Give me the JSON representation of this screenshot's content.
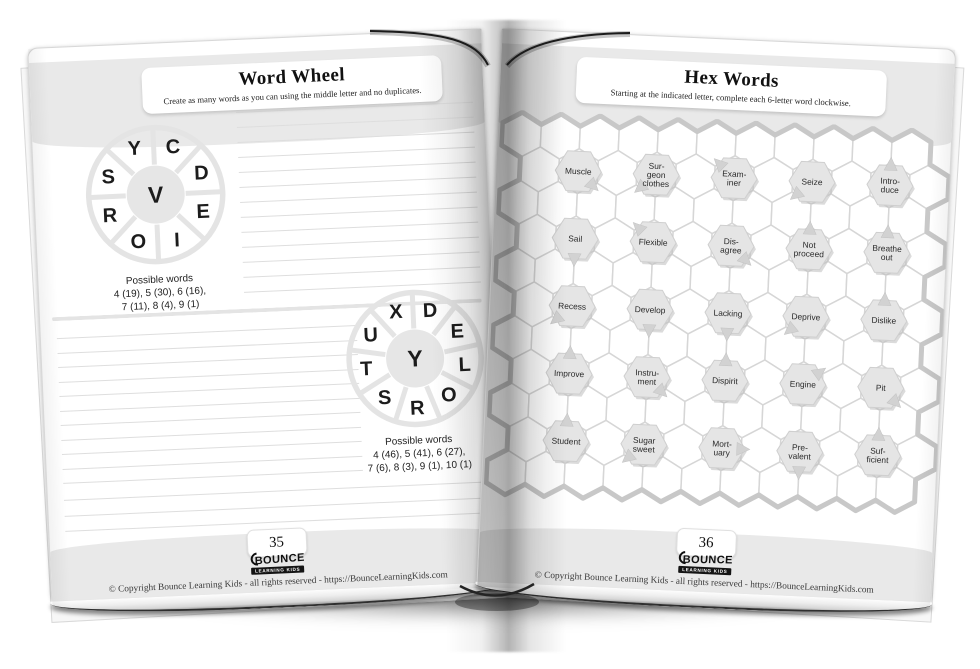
{
  "book": {
    "left_page": {
      "page_number": "35",
      "header": {
        "title": "Word Wheel",
        "subtitle": "Create as many words as you can using the middle letter and no duplicates."
      },
      "wheel1": {
        "center_letter": "V",
        "ring_letters": [
          "Y",
          "C",
          "D",
          "E",
          "I",
          "O",
          "R",
          "S"
        ],
        "possible_words_label": "Possible words",
        "possible_words_line1": "4 (19), 5 (30), 6 (16),",
        "possible_words_line2": "7 (11), 8 (4), 9 (1)"
      },
      "wheel2": {
        "center_letter": "Y",
        "ring_letters": [
          "X",
          "D",
          "E",
          "L",
          "O",
          "R",
          "S",
          "T",
          "U"
        ],
        "possible_words_label": "Possible words",
        "possible_words_line1": "4 (46), 5 (41), 6 (27),",
        "possible_words_line2": "7 (6), 8 (3), 9 (1), 10 (1)"
      },
      "footer": {
        "logo_main": "BOUNCE",
        "logo_sub": "LEARNING KIDS",
        "copyright": "© Copyright Bounce Learning Kids - all rights reserved - https://BounceLearningKids.com"
      }
    },
    "right_page": {
      "page_number": "36",
      "header": {
        "title": "Hex Words",
        "subtitle": "Starting at the indicated letter, complete each 6-letter word clockwise."
      },
      "hex_grid": {
        "rows": 11,
        "cols": 11,
        "clues": [
          {
            "text": "Muscle",
            "row": 1,
            "col": 1,
            "pointer": "SE"
          },
          {
            "text": "Sur-\ngeon\nclothes",
            "row": 1,
            "col": 3,
            "pointer": "SW"
          },
          {
            "text": "Exam-\niner",
            "row": 1,
            "col": 5,
            "pointer": "NW"
          },
          {
            "text": "Seize",
            "row": 1,
            "col": 7,
            "pointer": "SW"
          },
          {
            "text": "Intro-\nduce",
            "row": 1,
            "col": 9,
            "pointer": "N"
          },
          {
            "text": "Sail",
            "row": 3,
            "col": 1,
            "pointer": "S"
          },
          {
            "text": "Flexible",
            "row": 3,
            "col": 3,
            "pointer": "NW"
          },
          {
            "text": "Dis-\nagree",
            "row": 3,
            "col": 5,
            "pointer": "SE"
          },
          {
            "text": "Not\nproceed",
            "row": 3,
            "col": 7,
            "pointer": "N"
          },
          {
            "text": "Breathe\nout",
            "row": 3,
            "col": 9,
            "pointer": "N"
          },
          {
            "text": "Recess",
            "row": 5,
            "col": 1,
            "pointer": "SW"
          },
          {
            "text": "Develop",
            "row": 5,
            "col": 3,
            "pointer": "S"
          },
          {
            "text": "Lacking",
            "row": 5,
            "col": 5,
            "pointer": "S"
          },
          {
            "text": "Deprive",
            "row": 5,
            "col": 7,
            "pointer": "SW"
          },
          {
            "text": "Dislike",
            "row": 5,
            "col": 9,
            "pointer": "N"
          },
          {
            "text": "Improve",
            "row": 7,
            "col": 1,
            "pointer": "N"
          },
          {
            "text": "Instru-\nment",
            "row": 7,
            "col": 3,
            "pointer": "SE"
          },
          {
            "text": "Dispirit",
            "row": 7,
            "col": 5,
            "pointer": "N"
          },
          {
            "text": "Engine",
            "row": 7,
            "col": 7,
            "pointer": "NE"
          },
          {
            "text": "Pit",
            "row": 7,
            "col": 9,
            "pointer": "SE"
          },
          {
            "text": "Student",
            "row": 9,
            "col": 1,
            "pointer": "N"
          },
          {
            "text": "Sugar\nsweet",
            "row": 9,
            "col": 3,
            "pointer": "SW"
          },
          {
            "text": "Mort-\nuary",
            "row": 9,
            "col": 5,
            "pointer": "E"
          },
          {
            "text": "Pre-\nvalent",
            "row": 9,
            "col": 7,
            "pointer": "S"
          },
          {
            "text": "Suf-\nficient",
            "row": 9,
            "col": 9,
            "pointer": "N"
          }
        ]
      },
      "footer": {
        "logo_main": "BOUNCE",
        "logo_sub": "LEARNING KIDS",
        "copyright": "© Copyright Bounce Learning Kids - all rights reserved - https://BounceLearningKids.com"
      }
    },
    "colors": {
      "band": "#e9e9e9",
      "grid_line": "#d6d6d6",
      "grid_border": "#c8c8c8",
      "clue_fill": "#e5e5e5",
      "clue_shadow": "#bdbdbd",
      "pointer_fill": "#d2d2d2",
      "wheel_line": "#e4e4e4",
      "wheel_center_fill": "#e6e6e6",
      "letter_color": "#1c1c1c"
    }
  },
  "layout_hints": {
    "section1_lines": 13,
    "section2_lines": 11,
    "bottom_lines": 3
  }
}
